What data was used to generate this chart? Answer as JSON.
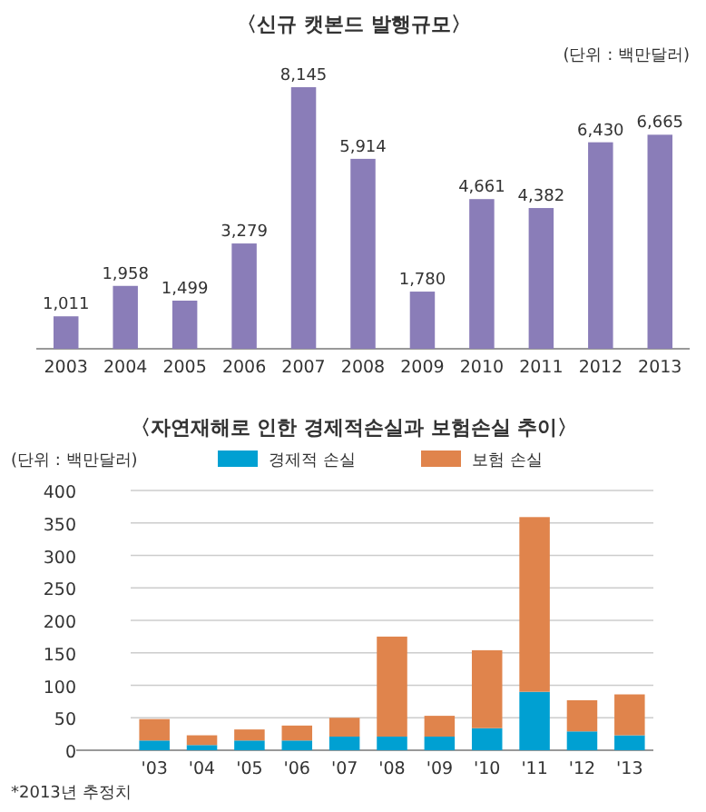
{
  "chart_data": [
    {
      "type": "bar",
      "title": "〈신규 캣본드 발행규모〉",
      "annotations": [
        "(단위 : 백만달러)"
      ],
      "categories": [
        "2003",
        "2004",
        "2005",
        "2006",
        "2007",
        "2008",
        "2009",
        "2010",
        "2011",
        "2012",
        "2013"
      ],
      "values": [
        1011,
        1958,
        1499,
        3279,
        8145,
        5914,
        1780,
        4661,
        4382,
        6430,
        6665
      ],
      "color": "#8a7db8",
      "value_labels": [
        "1,011",
        "1,958",
        "1,499",
        "3,279",
        "8,145",
        "5,914",
        "1,780",
        "4,661",
        "4,382",
        "6,430",
        "6,665"
      ]
    },
    {
      "type": "bar",
      "title": "〈자연재해로 인한 경제적손실과 보험손실 추이〉",
      "ylabel": "(단위 : 백만달러)",
      "annotations": [
        "*2013년 추정치"
      ],
      "stacked": true,
      "legend": "top",
      "grid": "y",
      "categories": [
        "'03",
        "'04",
        "'05",
        "'06",
        "'07",
        "'08",
        "'09",
        "'10",
        "'11",
        "'12",
        "'13"
      ],
      "ylim": [
        0,
        400
      ],
      "yticks": [
        0,
        50,
        100,
        150,
        200,
        250,
        300,
        350,
        400
      ],
      "series": [
        {
          "name": "경제적 손실",
          "color": "#00a0d2",
          "values": [
            15,
            8,
            15,
            15,
            21,
            21,
            21,
            34,
            90,
            29,
            23
          ]
        },
        {
          "name": "보험 손실",
          "color": "#e0844c",
          "values": [
            33,
            15,
            17,
            23,
            29,
            154,
            32,
            120,
            269,
            48,
            63
          ]
        }
      ]
    }
  ]
}
